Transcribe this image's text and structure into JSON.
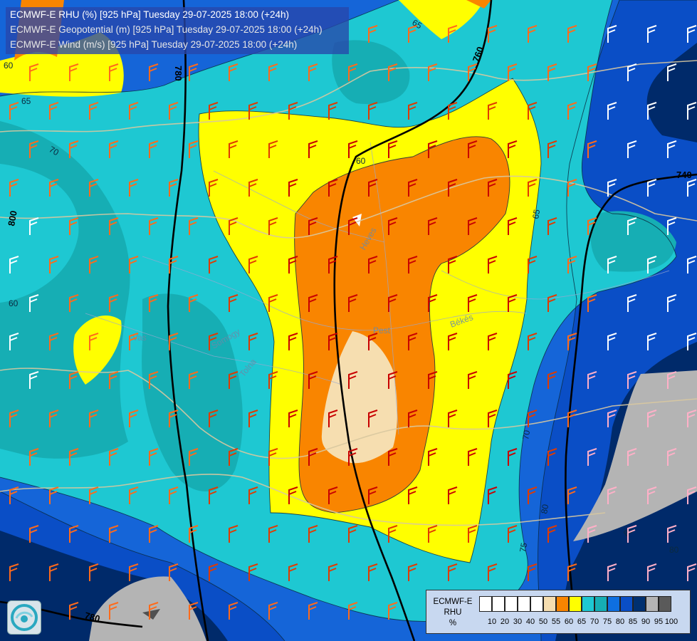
{
  "header": {
    "line1": "ECMWF-E RHU (%) [925 hPa] Tuesday 29-07-2025 18:00 (+24h)",
    "line2": "ECMWF-E Geopotential (m) [925 hPa] Tuesday 29-07-2025 18:00 (+24h)",
    "line3": "ECMWF-E Wind (m/s) [925 hPa] Tuesday 29-07-2025 18:00 (+24h)"
  },
  "map": {
    "region_labels": [
      "Heves",
      "Pest",
      "Békés",
      "Vas",
      "Somogy",
      "Tolna"
    ],
    "geopotential_labels": [
      "780",
      "760",
      "740",
      "800",
      "780"
    ],
    "rh_contour_labels": [
      "60",
      "65",
      "65",
      "70",
      "60",
      "60",
      "65",
      "70",
      "75",
      "80",
      "85",
      "80"
    ]
  },
  "legend": {
    "title_lines": [
      "ECMWF-E",
      "RHU",
      "%"
    ],
    "ticks": [
      "10",
      "20",
      "30",
      "40",
      "50",
      "55",
      "60",
      "65",
      "70",
      "75",
      "80",
      "85",
      "90",
      "95",
      "100"
    ],
    "colors": [
      "#ffffff",
      "#ffffff",
      "#ffffff",
      "#ffffff",
      "#ffffff",
      "#f6deb0",
      "#f98500",
      "#ffff00",
      "#1ec8d2",
      "#16aeb4",
      "#0e6fe0",
      "#0a4ec6",
      "#003070",
      "#b4b4b4",
      "#5a5a5a"
    ]
  },
  "colors": {
    "rh_55": "#f6deb0",
    "rh_60": "#f98500",
    "rh_65": "#ffff00",
    "rh_70": "#1ec8d2",
    "rh_75": "#16aeb4",
    "rh_80": "#0e6fe0",
    "rh_85": "#0a4ec6",
    "rh_90": "#003070",
    "rh_95": "#b4b4b4"
  }
}
